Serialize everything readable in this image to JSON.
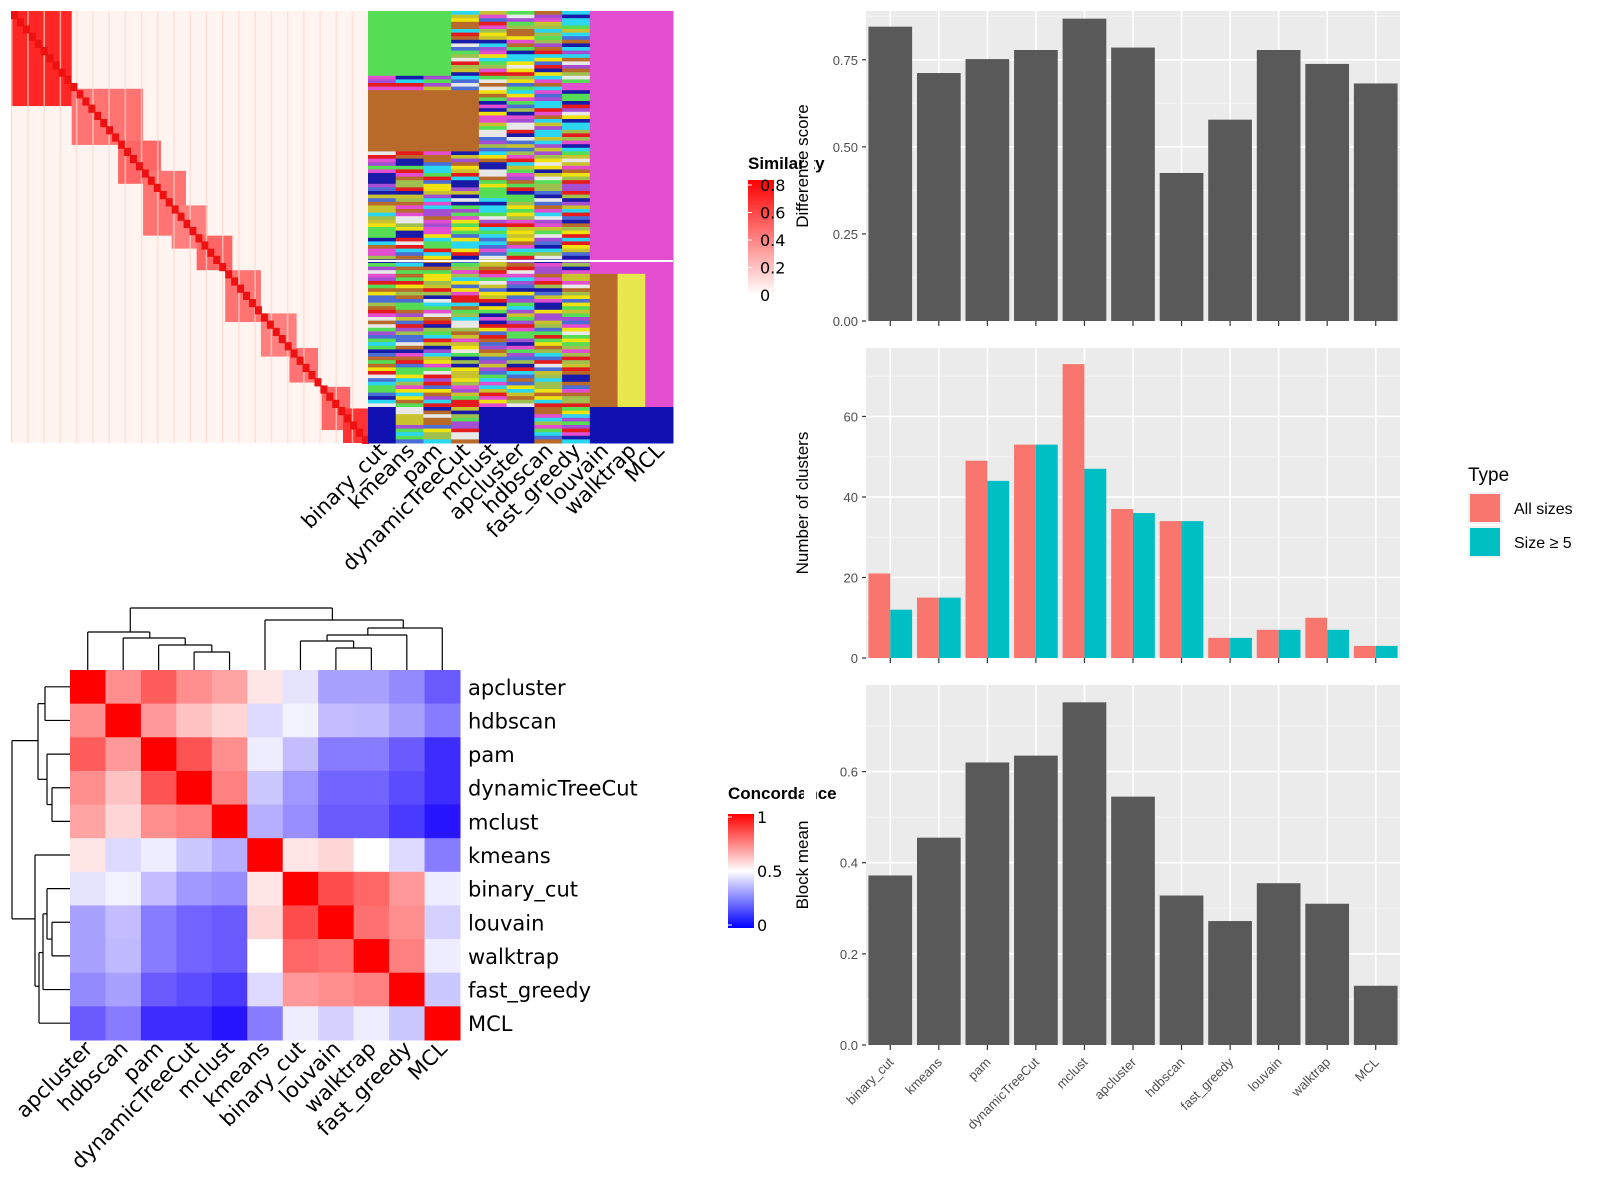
{
  "chart_data": [
    {
      "type": "heatmap",
      "panel": "similarity-matrix-with-cluster-annotations",
      "columns": [
        "binary_cut",
        "kmeans",
        "pam",
        "dynamicTreeCut",
        "mclust",
        "apcluster",
        "hdbscan",
        "fast_greedy",
        "louvain",
        "walktrap",
        "MCL"
      ],
      "legend_title": "Similarity",
      "legend_ticks": [
        "0.8",
        "0.6",
        "0.4",
        "0.2",
        "0"
      ],
      "colors": {
        "high": "#ff0000",
        "low": "#ffffff"
      }
    },
    {
      "type": "heatmap",
      "panel": "concordance",
      "labels": [
        "apcluster",
        "hdbscan",
        "pam",
        "dynamicTreeCut",
        "mclust",
        "kmeans",
        "binary_cut",
        "louvain",
        "walktrap",
        "fast_greedy",
        "MCL"
      ],
      "values": [
        [
          1.0,
          0.72,
          0.82,
          0.72,
          0.68,
          0.55,
          0.44,
          0.3,
          0.3,
          0.25,
          0.15
        ],
        [
          0.72,
          1.0,
          0.7,
          0.62,
          0.58,
          0.42,
          0.47,
          0.36,
          0.35,
          0.3,
          0.22
        ],
        [
          0.82,
          0.7,
          1.0,
          0.84,
          0.72,
          0.46,
          0.36,
          0.22,
          0.22,
          0.15,
          0.05
        ],
        [
          0.72,
          0.62,
          0.84,
          1.0,
          0.75,
          0.38,
          0.28,
          0.17,
          0.17,
          0.12,
          0.05
        ],
        [
          0.68,
          0.58,
          0.72,
          0.75,
          1.0,
          0.33,
          0.26,
          0.15,
          0.15,
          0.08,
          0.0
        ],
        [
          0.55,
          0.42,
          0.46,
          0.38,
          0.33,
          1.0,
          0.55,
          0.58,
          0.5,
          0.42,
          0.22
        ],
        [
          0.44,
          0.47,
          0.36,
          0.28,
          0.26,
          0.55,
          1.0,
          0.85,
          0.8,
          0.7,
          0.46
        ],
        [
          0.3,
          0.36,
          0.22,
          0.17,
          0.15,
          0.58,
          0.85,
          1.0,
          0.78,
          0.72,
          0.4
        ],
        [
          0.3,
          0.35,
          0.22,
          0.17,
          0.15,
          0.5,
          0.8,
          0.78,
          1.0,
          0.75,
          0.46
        ],
        [
          0.25,
          0.3,
          0.15,
          0.12,
          0.08,
          0.42,
          0.7,
          0.72,
          0.75,
          1.0,
          0.38
        ],
        [
          0.15,
          0.22,
          0.05,
          0.05,
          0.0,
          0.22,
          0.46,
          0.4,
          0.46,
          0.38,
          1.0
        ]
      ],
      "legend_title": "Concordance",
      "legend_ticks": [
        "1",
        "0.5",
        "0"
      ],
      "colors": {
        "high": "#ff0000",
        "mid": "#ffffff",
        "low": "#0000ff"
      }
    },
    {
      "type": "bar",
      "categories": [
        "binary_cut",
        "kmeans",
        "pam",
        "dynamicTreeCut",
        "mclust",
        "apcluster",
        "hdbscan",
        "fast_greedy",
        "louvain",
        "walktrap",
        "MCL"
      ],
      "values": [
        0.845,
        0.712,
        0.752,
        0.778,
        0.868,
        0.785,
        0.425,
        0.578,
        0.778,
        0.738,
        0.682
      ],
      "ylabel": "Difference score",
      "ylim": [
        0,
        0.89
      ],
      "yticks": [
        0.0,
        0.25,
        0.5,
        0.75
      ],
      "ytick_labels": [
        "0.00",
        "0.25",
        "0.50",
        "0.75"
      ],
      "color": "#595959"
    },
    {
      "type": "bar",
      "categories": [
        "binary_cut",
        "kmeans",
        "pam",
        "dynamicTreeCut",
        "mclust",
        "apcluster",
        "hdbscan",
        "fast_greedy",
        "louvain",
        "walktrap",
        "MCL"
      ],
      "series": [
        {
          "name": "All sizes",
          "values": [
            21,
            15,
            49,
            53,
            73,
            37,
            34,
            5,
            7,
            10,
            3
          ],
          "color": "#F8766D"
        },
        {
          "name": "Size ≥ 5",
          "values": [
            12,
            15,
            44,
            53,
            47,
            36,
            34,
            5,
            7,
            7,
            3
          ],
          "color": "#00BFC4"
        }
      ],
      "ylabel": "Number of clusters",
      "ylim": [
        0,
        77
      ],
      "yticks": [
        0,
        20,
        40,
        60
      ],
      "legend_title": "Type"
    },
    {
      "type": "bar",
      "categories": [
        "binary_cut",
        "kmeans",
        "pam",
        "dynamicTreeCut",
        "mclust",
        "apcluster",
        "hdbscan",
        "fast_greedy",
        "louvain",
        "walktrap",
        "MCL"
      ],
      "values": [
        0.372,
        0.455,
        0.62,
        0.635,
        0.752,
        0.545,
        0.328,
        0.272,
        0.355,
        0.31,
        0.13
      ],
      "ylabel": "Block mean",
      "ylim": [
        0,
        0.79
      ],
      "yticks": [
        0.0,
        0.2,
        0.4,
        0.6
      ],
      "ytick_labels": [
        "0.0",
        "0.2",
        "0.4",
        "0.6"
      ],
      "color": "#595959"
    }
  ]
}
